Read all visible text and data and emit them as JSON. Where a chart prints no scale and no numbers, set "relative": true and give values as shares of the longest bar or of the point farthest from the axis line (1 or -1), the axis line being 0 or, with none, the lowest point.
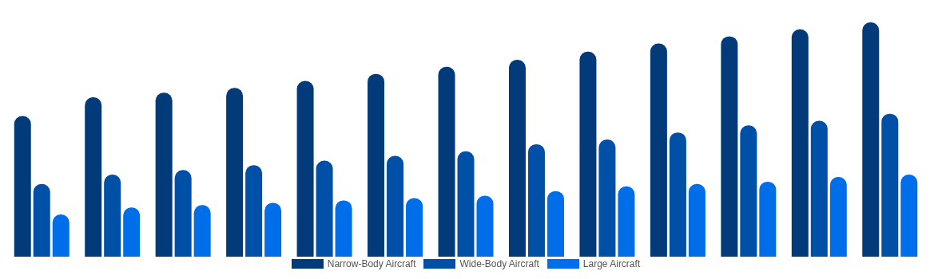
{
  "chart_data": {
    "type": "bar",
    "relative": true,
    "legend": "bottom",
    "categories": [
      null,
      null,
      null,
      null,
      null,
      null,
      null,
      null,
      null,
      null,
      null,
      null,
      null
    ],
    "series": [
      {
        "name": "Narrow-Body Aircraft",
        "color": "#023a7a",
        "values": [
          0.6,
          0.68,
          0.7,
          0.72,
          0.75,
          0.78,
          0.81,
          0.84,
          0.875,
          0.91,
          0.94,
          0.97,
          1
        ]
      },
      {
        "name": "Wide-Body Aircraft",
        "color": "#0050a8",
        "values": [
          0.31,
          0.35,
          0.37,
          0.39,
          0.41,
          0.43,
          0.45,
          0.48,
          0.5,
          0.53,
          0.56,
          0.58,
          0.61
        ]
      },
      {
        "name": "Large Aircraft",
        "color": "#006ee8",
        "values": [
          0.18,
          0.21,
          0.22,
          0.23,
          0.24,
          0.25,
          0.26,
          0.28,
          0.3,
          0.31,
          0.32,
          0.34,
          0.35
        ]
      }
    ]
  }
}
